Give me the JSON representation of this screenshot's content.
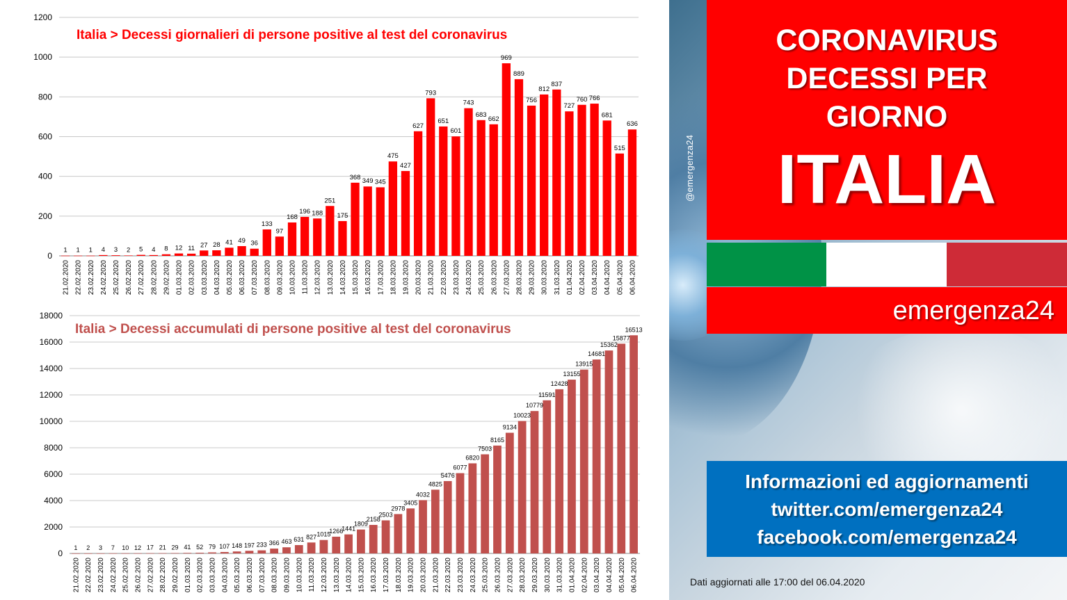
{
  "header": {
    "title_line1": "CORONAVIRUS",
    "title_line2": "DECESSI PER",
    "title_line3": "GIORNO",
    "country": "ITALIA",
    "brand": "emergenza24",
    "handle": "@emergenza24"
  },
  "flag_colors": [
    "#009246",
    "#ffffff",
    "#ce2b37"
  ],
  "colors": {
    "accent_red": "#ff0000",
    "info_blue": "#0070c0",
    "bar_daily": "#ff0000",
    "bar_cumulative": "#c0504d"
  },
  "info": {
    "line1": "Informazioni ed aggiornamenti",
    "line2": "twitter.com/emergenza24",
    "line3": "facebook.com/emergenza24"
  },
  "footnote": "Dati aggiornati alle 17:00 del 06.04.2020",
  "chart_data": [
    {
      "type": "bar",
      "title": "Italia > Decessi giornalieri di persone positive al test del coronavirus",
      "color": "#ff0000",
      "ylim": [
        0,
        1200
      ],
      "yticks": [
        0,
        200,
        400,
        600,
        800,
        1000,
        1200
      ],
      "grid": true,
      "categories": [
        "21.02.2020",
        "22.02.2020",
        "23.02.2020",
        "24.02.2020",
        "25.02.2020",
        "26.02.2020",
        "27.02.2020",
        "28.02.2020",
        "29.02.2020",
        "01.03.2020",
        "02.03.2020",
        "03.03.2020",
        "04.03.2020",
        "05.03.2020",
        "06.03.2020",
        "07.03.2020",
        "08.03.2020",
        "09.03.2020",
        "10.03.2020",
        "11.03.2020",
        "12.03.2020",
        "13.03.2020",
        "14.03.2020",
        "15.03.2020",
        "16.03.2020",
        "17.03.2020",
        "18.03.2020",
        "19.03.2020",
        "20.03.2020",
        "21.03.2020",
        "22.03.2020",
        "23.03.2020",
        "24.03.2020",
        "25.03.2020",
        "26.03.2020",
        "27.03.2020",
        "28.03.2020",
        "29.03.2020",
        "30.03.2020",
        "31.03.2020",
        "01.04.2020",
        "02.04.2020",
        "03.04.2020",
        "04.04.2020",
        "05.04.2020",
        "06.04.2020"
      ],
      "values": [
        1,
        1,
        1,
        4,
        3,
        2,
        5,
        4,
        8,
        12,
        11,
        27,
        28,
        41,
        49,
        36,
        133,
        97,
        168,
        196,
        188,
        251,
        175,
        368,
        349,
        345,
        475,
        427,
        627,
        793,
        651,
        601,
        743,
        683,
        662,
        969,
        889,
        756,
        812,
        837,
        727,
        760,
        766,
        681,
        515,
        636
      ]
    },
    {
      "type": "bar",
      "title": "Italia > Decessi accumulati di persone positive al test del coronavirus",
      "color": "#c0504d",
      "ylim": [
        0,
        18000
      ],
      "yticks": [
        0,
        2000,
        4000,
        6000,
        8000,
        10000,
        12000,
        14000,
        16000,
        18000
      ],
      "grid": true,
      "categories": [
        "21.02.2020",
        "22.02.2020",
        "23.02.2020",
        "24.02.2020",
        "25.02.2020",
        "26.02.2020",
        "27.02.2020",
        "28.02.2020",
        "29.02.2020",
        "01.03.2020",
        "02.03.2020",
        "03.03.2020",
        "04.03.2020",
        "05.03.2020",
        "06.03.2020",
        "07.03.2020",
        "08.03.2020",
        "09.03.2020",
        "10.03.2020",
        "11.03.2020",
        "12.03.2020",
        "13.03.2020",
        "14.03.2020",
        "15.03.2020",
        "16.03.2020",
        "17.03.2020",
        "18.03.2020",
        "19.03.2020",
        "20.03.2020",
        "21.03.2020",
        "22.03.2020",
        "23.03.2020",
        "24.03.2020",
        "25.03.2020",
        "26.03.2020",
        "27.03.2020",
        "28.03.2020",
        "29.03.2020",
        "30.03.2020",
        "31.03.2020",
        "01.04.2020",
        "02.04.2020",
        "03.04.2020",
        "04.04.2020",
        "05.04.2020",
        "06.04.2020"
      ],
      "values": [
        1,
        2,
        3,
        7,
        10,
        12,
        17,
        21,
        29,
        41,
        52,
        79,
        107,
        148,
        197,
        233,
        366,
        463,
        631,
        827,
        1015,
        1266,
        1441,
        1809,
        2158,
        2503,
        2978,
        3405,
        4032,
        4825,
        5476,
        6077,
        6820,
        7503,
        8165,
        9134,
        10023,
        10779,
        11591,
        12428,
        13155,
        13915,
        14681,
        15362,
        15877,
        16513
      ]
    }
  ]
}
